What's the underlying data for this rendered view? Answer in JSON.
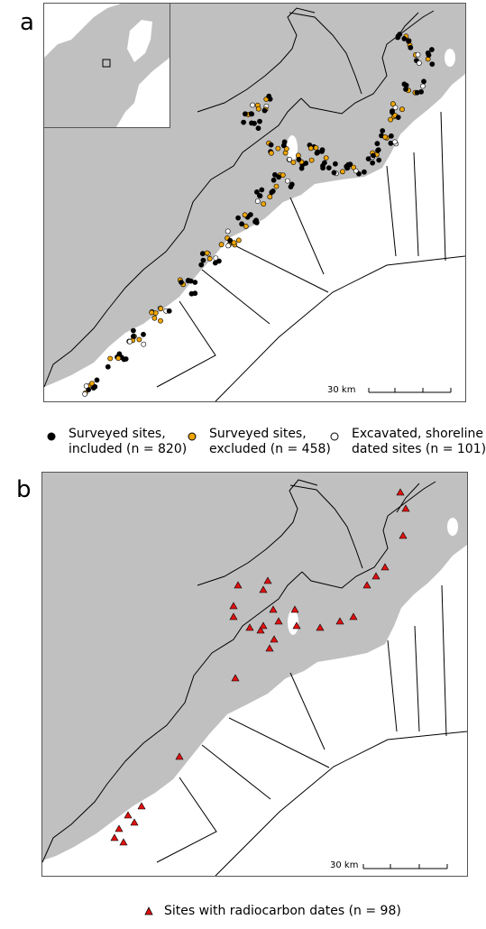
{
  "panels": {
    "a": {
      "letter": "a",
      "scale_label": "30 km"
    },
    "b": {
      "letter": "b",
      "scale_label": "30 km"
    }
  },
  "legend_a": [
    {
      "line1": "Surveyed sites,",
      "line2": "included (n = 820)",
      "symbol": "circle",
      "color": "#000000"
    },
    {
      "line1": "Surveyed sites,",
      "line2": "excluded (n = 458)",
      "symbol": "circle",
      "color": "#f0a500"
    },
    {
      "line1": "Excavated, shoreline",
      "line2": "dated sites (n = 101)",
      "symbol": "circle",
      "color": "#ffffff"
    }
  ],
  "legend_b": {
    "label": "Sites with radiocarbon dates (n = 98)",
    "symbol": "triangle",
    "color": "#e01010"
  },
  "colors": {
    "land": "#c0c0c0",
    "sea": "#ffffff",
    "boundary": "#000000"
  }
}
